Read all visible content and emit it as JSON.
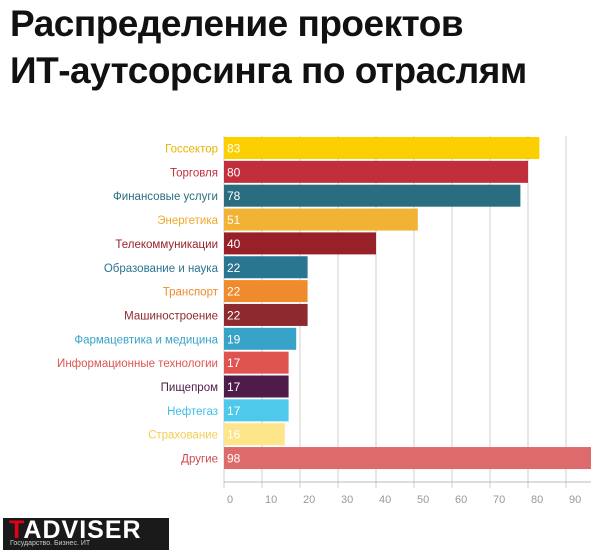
{
  "title_line1": "Распределение проектов",
  "title_line2": "ИТ-аутсорсинга по отраслям",
  "logo": {
    "name": "TADVISER",
    "tagline": "Государство. Бизнес. ИТ",
    "accent_color": "#e2001a"
  },
  "chart_data": {
    "type": "bar",
    "orientation": "horizontal",
    "title": "Распределение проектов ИТ-аутсорсинга по отраслям",
    "categories": [
      "Госсектор",
      "Торговля",
      "Финансовые услуги",
      "Энергетика",
      "Телекоммуникации",
      "Образование и наука",
      "Транспорт",
      "Машиностроение",
      "Фармацевтика и медицина",
      "Информационные технологии",
      "Пищепром",
      "Нефтегаз",
      "Страхование",
      "Другие"
    ],
    "values": [
      83,
      80,
      78,
      51,
      40,
      22,
      22,
      22,
      19,
      17,
      17,
      17,
      16,
      98
    ],
    "colors": [
      "#fcd000",
      "#c22f3c",
      "#2b6d80",
      "#f2b233",
      "#982029",
      "#2a7590",
      "#ef8b2c",
      "#8e2a2f",
      "#38a3c8",
      "#e05450",
      "#4f1c4a",
      "#4ec8eb",
      "#fde68a",
      "#dd6b6b"
    ],
    "label_colors": [
      "#e8b400",
      "#c22f3c",
      "#2b6d80",
      "#f0a828",
      "#982029",
      "#2a7590",
      "#ef8b2c",
      "#8e2a2f",
      "#38a3c8",
      "#e05450",
      "#4f1c4a",
      "#40bde6",
      "#f5cd52",
      "#cc4b50"
    ],
    "xticks": [
      0,
      10,
      20,
      30,
      40,
      50,
      60,
      70,
      80,
      90
    ],
    "xlim": [
      0,
      98
    ],
    "grid": true,
    "xlabel": "",
    "ylabel": ""
  }
}
